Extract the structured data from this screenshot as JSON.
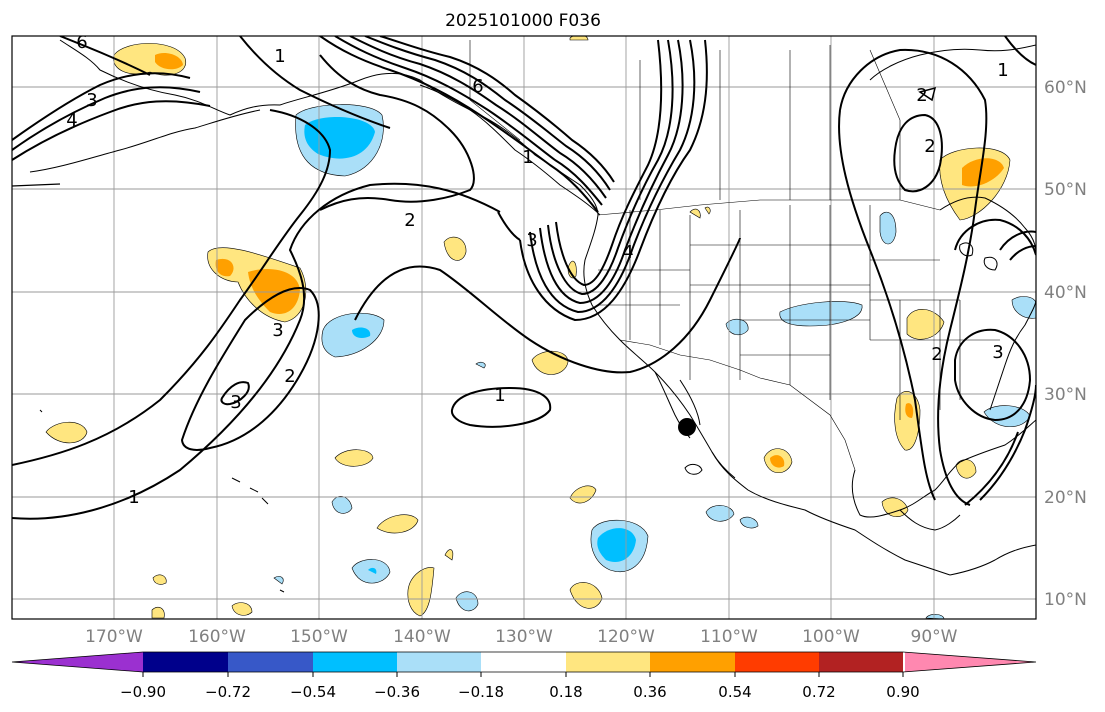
{
  "title": "2025101000 F036",
  "latitude_labels": [
    "60°N",
    "50°N",
    "40°N",
    "30°N",
    "20°N",
    "10°N"
  ],
  "longitude_labels": [
    "170°W",
    "160°W",
    "150°W",
    "140°W",
    "130°W",
    "120°W",
    "110°W",
    "100°W",
    "90°W"
  ],
  "contour_labels": [
    "1",
    "2",
    "3",
    "4",
    "6"
  ],
  "colorbar": {
    "tick_labels": [
      "−0.90",
      "−0.72",
      "−0.54",
      "−0.36",
      "−0.18",
      "0.18",
      "0.36",
      "0.54",
      "0.72",
      "0.90"
    ],
    "colors": [
      "#9b30d0",
      "#00008b",
      "#3758c8",
      "#00bfff",
      "#aadff8",
      "#ffffff",
      "#ffe680",
      "#ffa000",
      "#ff3c00",
      "#b22222",
      "#ff88b0"
    ]
  },
  "colors": {
    "positive_light": "#ffe680",
    "positive_mid": "#ffa000",
    "negative_light": "#aadff8",
    "negative_mid": "#00bfff",
    "grid": "#9a9a9a",
    "contour": "#000000"
  }
}
